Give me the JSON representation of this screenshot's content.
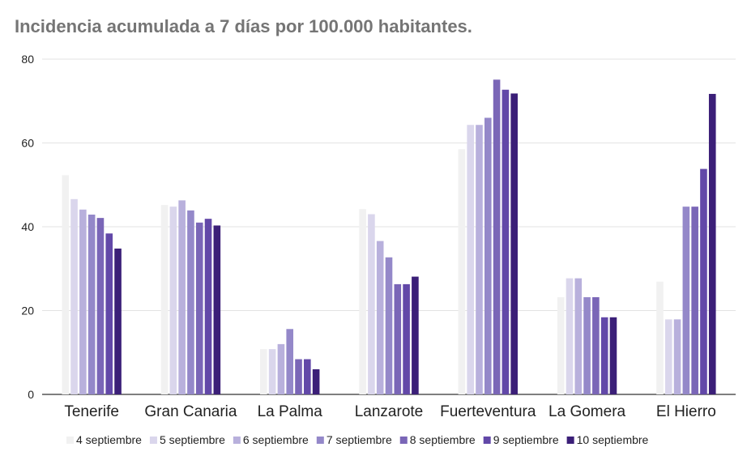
{
  "chart_data": {
    "type": "bar",
    "title": "Incidencia acumulada a 7 días por 100.000 habitantes.",
    "xlabel": "",
    "ylabel": "",
    "ylim": [
      0,
      80
    ],
    "yticks": [
      "0",
      "20",
      "40",
      "60",
      "80"
    ],
    "grid": true,
    "legend_position": "bottom",
    "categories": [
      "Tenerife",
      "Gran Canaria",
      "La Palma",
      "Lanzarote",
      "Fuerteventura",
      "La Gomera",
      "El Hierro"
    ],
    "series": [
      {
        "name": "4 septiembre",
        "color": "#f1f1f1",
        "values": [
          52.3,
          45.2,
          10.8,
          44.2,
          58.5,
          23.2,
          26.9
        ]
      },
      {
        "name": "5 septiembre",
        "color": "#dad6ec",
        "values": [
          46.6,
          44.8,
          10.8,
          43.0,
          64.3,
          27.7,
          17.9
        ]
      },
      {
        "name": "6 septiembre",
        "color": "#b8b0dc",
        "values": [
          44.1,
          46.3,
          12.0,
          36.6,
          64.3,
          27.7,
          17.9
        ]
      },
      {
        "name": "7 septiembre",
        "color": "#9488c9",
        "values": [
          42.9,
          43.9,
          15.6,
          32.7,
          66.0,
          23.2,
          44.8
        ]
      },
      {
        "name": "8 septiembre",
        "color": "#7a66b7",
        "values": [
          42.1,
          41.0,
          8.4,
          26.3,
          75.1,
          23.2,
          44.8
        ]
      },
      {
        "name": "9 septiembre",
        "color": "#6248a8",
        "values": [
          38.4,
          41.9,
          8.4,
          26.3,
          72.7,
          18.4,
          53.8
        ]
      },
      {
        "name": "10 septiembre",
        "color": "#3b1f78",
        "values": [
          34.8,
          40.3,
          6.0,
          28.1,
          71.8,
          18.4,
          71.7
        ]
      }
    ]
  }
}
